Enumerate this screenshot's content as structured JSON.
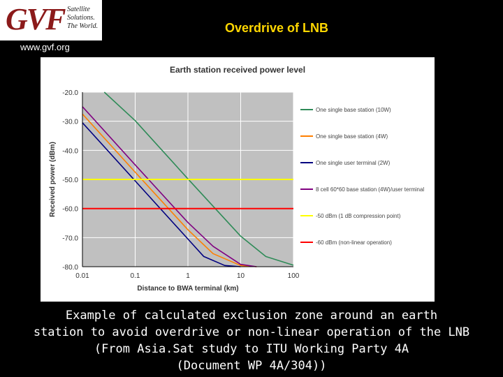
{
  "header": {
    "logo_text": "GVF",
    "logo_tagline": [
      "Satellite",
      "Solutions.",
      "The World."
    ],
    "website": "www.gvf.org",
    "slide_title": "Overdrive of LNB"
  },
  "caption": [
    "Example of calculated exclusion zone around an earth",
    "station to avoid overdrive or non-linear operation of the LNB",
    "(From Asia.Sat study to ITU Working Party 4A",
    "(Document WP 4A/304))"
  ],
  "colors": {
    "background": "#000000",
    "title": "#ffd700",
    "plot_area": "#c0c0c0"
  },
  "chart_data": {
    "type": "line",
    "title": "Earth station received power level",
    "xlabel": "Distance to BWA terminal (km)",
    "ylabel": "Received power (dBm)",
    "x_scale": "log",
    "xlim": [
      0.01,
      100
    ],
    "ylim": [
      -80,
      -20
    ],
    "x_ticks": [
      "0.01",
      "0.1",
      "1",
      "10",
      "100"
    ],
    "y_ticks": [
      "-20.0",
      "-30.0",
      "-40.0",
      "-50.0",
      "-60.0",
      "-70.0",
      "-80.0"
    ],
    "grid": true,
    "legend_position": "right",
    "series": [
      {
        "name": "One single base station (10W)",
        "color": "#2e8b57",
        "x": [
          0.026,
          0.1,
          1,
          10,
          30,
          100
        ],
        "y": [
          -20,
          -29.8,
          -49.8,
          -69.5,
          -76.5,
          -79.5
        ]
      },
      {
        "name": "One single base station (4W)",
        "color": "#ff7f00",
        "x": [
          0.01,
          0.1,
          1,
          3,
          10,
          20
        ],
        "y": [
          -27.5,
          -47.5,
          -67.3,
          -75.5,
          -79.6,
          -80
        ]
      },
      {
        "name": "One single user terminal (2W)",
        "color": "#000080",
        "x": [
          0.01,
          0.1,
          1,
          2,
          5,
          10
        ],
        "y": [
          -30.5,
          -50.5,
          -70.5,
          -76.5,
          -79.6,
          -80
        ]
      },
      {
        "name": "8 cell 60*60 base station (4W)/user terminal",
        "color": "#800080",
        "x": [
          0.01,
          0.1,
          1,
          3,
          10,
          20
        ],
        "y": [
          -25,
          -45,
          -64.8,
          -73,
          -79.2,
          -80
        ]
      },
      {
        "name": "-50 dBm (1 dB compression point)",
        "color": "#ffff00",
        "x": [
          0.01,
          100
        ],
        "y": [
          -50,
          -50
        ]
      },
      {
        "name": "-60 dBm (non-linear operation)",
        "color": "#ff0000",
        "x": [
          0.01,
          100
        ],
        "y": [
          -60,
          -60
        ]
      }
    ]
  }
}
